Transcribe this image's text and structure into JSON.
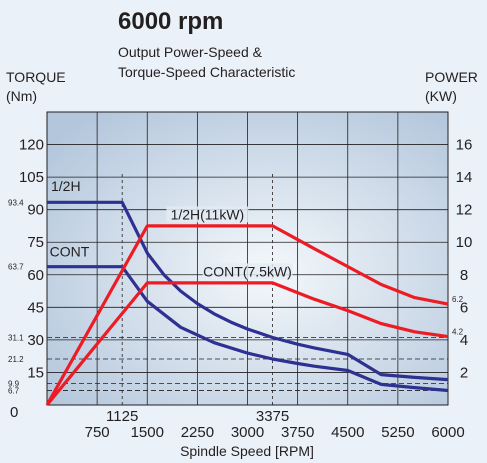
{
  "title": "6000 rpm",
  "subtitle_lines": [
    "Output Power-Speed &",
    "Torque-Speed Characteristic"
  ],
  "chart_data": {
    "type": "line",
    "title": "6000 rpm",
    "xlabel": "Spindle Speed [RPM]",
    "y_left_label": [
      "TORQUE",
      "(Nm)"
    ],
    "y_right_label": [
      "POWER",
      "(KW)"
    ],
    "xlim": [
      0,
      6000
    ],
    "ylim_left": [
      0,
      135
    ],
    "ylim_right": [
      0,
      18
    ],
    "grid": true,
    "x_ticks": [
      750,
      1500,
      2250,
      3000,
      3750,
      4500,
      5250,
      6000
    ],
    "x_extra_ticks": [
      1125,
      3375
    ],
    "y_left_ticks": [
      15,
      30,
      45,
      60,
      75,
      90,
      105,
      120
    ],
    "y_left_zero_label": "0",
    "y_left_small_ticks": [
      "93.4",
      "63.7",
      "31.1",
      "21.2",
      "9.9",
      "6.7"
    ],
    "y_left_small_tick_values": [
      93.4,
      63.7,
      31.1,
      21.2,
      9.9,
      6.7
    ],
    "y_right_ticks": [
      2,
      4,
      6,
      8,
      10,
      12,
      14,
      16
    ],
    "y_right_small_ticks": [
      "6.2",
      "4.2"
    ],
    "y_right_small_tick_values": [
      6.2,
      4.2
    ],
    "series": [
      {
        "name": "1/2H",
        "kind": "torque",
        "color": "#2e3192",
        "x": [
          0,
          1125,
          1500,
          1750,
          2000,
          2250,
          2500,
          2750,
          3000,
          3375,
          3750,
          4000,
          4500,
          5000,
          5500,
          6000
        ],
        "y": [
          93.4,
          93.4,
          70.0,
          60.0,
          52.5,
          46.7,
          42.0,
          38.2,
          35.0,
          31.1,
          28.0,
          26.3,
          23.3,
          14.0,
          12.7,
          11.7
        ]
      },
      {
        "name": "CONT",
        "kind": "torque",
        "color": "#2e3192",
        "x": [
          0,
          1125,
          1500,
          2000,
          2500,
          3000,
          3375,
          3750,
          4000,
          4500,
          5000,
          5500,
          6000
        ],
        "y": [
          63.7,
          63.7,
          47.8,
          35.8,
          28.7,
          23.9,
          21.2,
          19.1,
          17.9,
          15.9,
          9.5,
          8.0,
          6.7
        ]
      },
      {
        "name": "1/2H(11kW)",
        "kind": "power",
        "color": "#ed1c24",
        "x": [
          0,
          1500,
          3375,
          4000,
          4500,
          5000,
          5500,
          6000
        ],
        "y": [
          0,
          11,
          11,
          9.6,
          8.5,
          7.4,
          6.6,
          6.2
        ]
      },
      {
        "name": "CONT(7.5kW)",
        "kind": "power",
        "color": "#ed1c24",
        "x": [
          0,
          1500,
          3375,
          4000,
          4500,
          5000,
          5500,
          6000
        ],
        "y": [
          0,
          7.5,
          7.5,
          6.5,
          5.8,
          5.0,
          4.5,
          4.2
        ]
      }
    ],
    "reference_lines": {
      "vertical_x": [
        1125,
        3375
      ],
      "horizontal_torque": [
        31.1,
        21.2,
        9.9,
        6.7
      ]
    }
  },
  "colors": {
    "torque_line": "#2e3192",
    "power_line": "#ed1c24",
    "plot_bg_edge": "#b3c6dc",
    "plot_bg_center": "#f4f8fb",
    "grid": "#231f20"
  }
}
